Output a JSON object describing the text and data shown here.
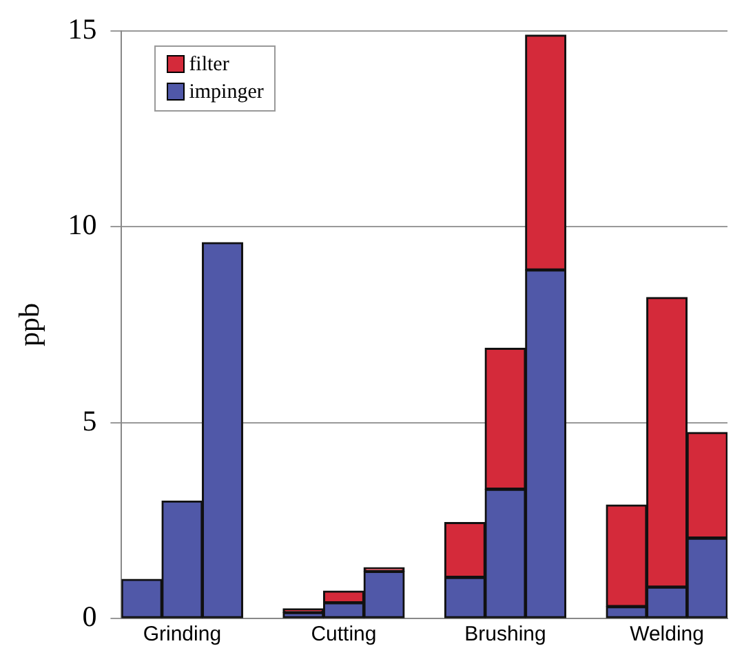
{
  "chart_data": {
    "type": "bar",
    "stacked": true,
    "ylabel": "ppb",
    "categories": [
      null,
      "Grinding",
      null,
      null,
      null,
      "Cutting",
      null,
      null,
      null,
      "Brushing",
      null,
      null,
      null,
      "Welding",
      null
    ],
    "series": [
      {
        "name": "impinger",
        "color": "#5058a8",
        "values": [
          1.0,
          3.0,
          9.6,
          null,
          0.15,
          0.4,
          1.2,
          null,
          1.05,
          3.3,
          8.9,
          null,
          0.3,
          0.8,
          2.05
        ]
      },
      {
        "name": "filter",
        "color": "#d42a3a",
        "values": [
          null,
          null,
          null,
          null,
          0.1,
          0.3,
          0.1,
          null,
          1.4,
          3.6,
          6.0,
          null,
          2.6,
          7.4,
          2.7
        ]
      }
    ],
    "ylim": [
      0,
      15
    ],
    "yticks": [
      0,
      5,
      10,
      15
    ],
    "grid": "y",
    "legend": "top left"
  }
}
